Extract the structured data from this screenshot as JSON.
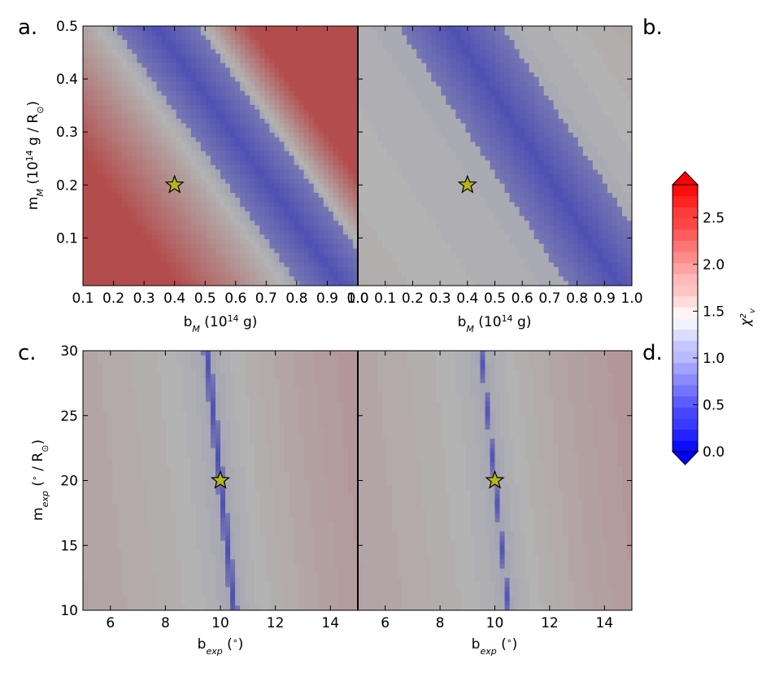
{
  "chart_data": [
    {
      "type": "heatmap",
      "panel_label": "a.",
      "xlabel": "b_M (10^14 g)",
      "ylabel": "m_M (10^14 g / R_⊙)",
      "xlim": [
        0.1,
        1.0
      ],
      "ylim": [
        0.01,
        0.5
      ],
      "xticks": [
        "0.1",
        "0.2",
        "0.3",
        "0.4",
        "0.5",
        "0.6",
        "0.7",
        "0.8",
        "0.9",
        "1.0"
      ],
      "yticks": [
        "0.1",
        "0.2",
        "0.3",
        "0.4",
        "0.5"
      ],
      "marker": {
        "shape": "star",
        "x": 0.4,
        "y": 0.2
      },
      "field": {
        "kind": "band",
        "ymax": 0.5,
        "a": 0.5,
        "b": 0.62,
        "c_min": 0.14,
        "c_max": 0.36,
        "outside": 1.2,
        "dmax": 0.29,
        "exp_fall": 1.0,
        "c_fall": 0.1,
        "exp_rise": 1.0,
        "c_rise": 0.1,
        "fall_mul": 1.5,
        "rise_mul": 3.5,
        "fall_max": 2.0,
        "rise_max": 3.0
      }
    },
    {
      "type": "heatmap",
      "panel_label": "b.",
      "xlabel": "b_M (10^14 g)",
      "ylabel": "",
      "xlim": [
        0.0,
        1.0
      ],
      "ylim": [
        0.01,
        0.5
      ],
      "xticks": [
        "0.0",
        "0.1",
        "0.2",
        "0.3",
        "0.4",
        "0.5",
        "0.6",
        "0.7",
        "0.8",
        "0.9",
        "1.0"
      ],
      "yticks": [],
      "marker": {
        "shape": "star",
        "x": 0.4,
        "y": 0.2
      },
      "field": {
        "kind": "band",
        "ymax": 0.5,
        "a": 0.5,
        "b": 0.63,
        "c_min": 0.1,
        "c_max": 0.4,
        "outside": 1.3,
        "dmax": 0.29,
        "exp_fall": 1.0,
        "c_fall": 0.1,
        "exp_rise": 1.0,
        "c_rise": 0.1,
        "fall_mul": 0.1,
        "rise_mul": 0.2,
        "fall_max": 0.7,
        "rise_max": 0.3
      }
    },
    {
      "type": "heatmap",
      "panel_label": "c.",
      "xlabel": "b_exp (°)",
      "ylabel": "m_exp (° / R_⊙)",
      "xlim": [
        5,
        15
      ],
      "ylim": [
        10,
        30
      ],
      "xticks": [
        "6",
        "8",
        "10",
        "12",
        "14"
      ],
      "yticks": [
        "10",
        "15",
        "20",
        "25",
        "30"
      ],
      "marker": {
        "shape": "star",
        "x": 10,
        "y": 20
      },
      "field": {
        "kind": "band",
        "ymax": 30,
        "a": 40,
        "b": 2.0,
        "c_min": -2.8,
        "c_max": 2.8,
        "outside": 1.2,
        "dmax": 18.0,
        "exp_fall": 0.5,
        "c_fall": 15.5,
        "exp_rise": 0.6,
        "c_rise": 14,
        "fall_mul": 0.8,
        "rise_mul": 0.7,
        "fall_max": 0.8,
        "rise_max": 0.6
      }
    },
    {
      "type": "heatmap",
      "panel_label": "d.",
      "xlabel": "b_exp (°)",
      "ylabel": "",
      "xlim": [
        5,
        15
      ],
      "ylim": [
        10,
        30
      ],
      "xticks": [
        "6",
        "8",
        "10",
        "12",
        "14"
      ],
      "yticks": [],
      "marker": {
        "shape": "star",
        "x": 10,
        "y": 20
      },
      "field": {
        "kind": "band",
        "ymax": 30,
        "a": 40,
        "b": 2.0,
        "c_min": -1.4,
        "c_max": 1.4,
        "outside": 1.2,
        "dmax": 18.0,
        "exp_fall": 0.5,
        "c_fall": 15.5,
        "exp_rise": 0.6,
        "c_rise": 14,
        "fall_mul": 0.8,
        "rise_mul": 0.7,
        "fall_max": 0.8,
        "rise_max": 0.6
      }
    }
  ],
  "colorbar": {
    "label": "χ²_v",
    "ticks": [
      "0.0",
      "0.5",
      "1.0",
      "1.5",
      "2.0",
      "2.5"
    ],
    "tick_values": [
      0.0,
      0.5,
      1.0,
      1.5,
      2.0,
      2.5
    ],
    "vmin": 0.0,
    "vmax": 2.85,
    "extend": "both",
    "colormap": "bwr",
    "low_color": "#0000ff",
    "mid_color": "#ffffff",
    "high_color": "#ff0000"
  },
  "overlay_color": "#808080",
  "overlay_opacity": 0.6,
  "marker_color": "#b5b51c"
}
